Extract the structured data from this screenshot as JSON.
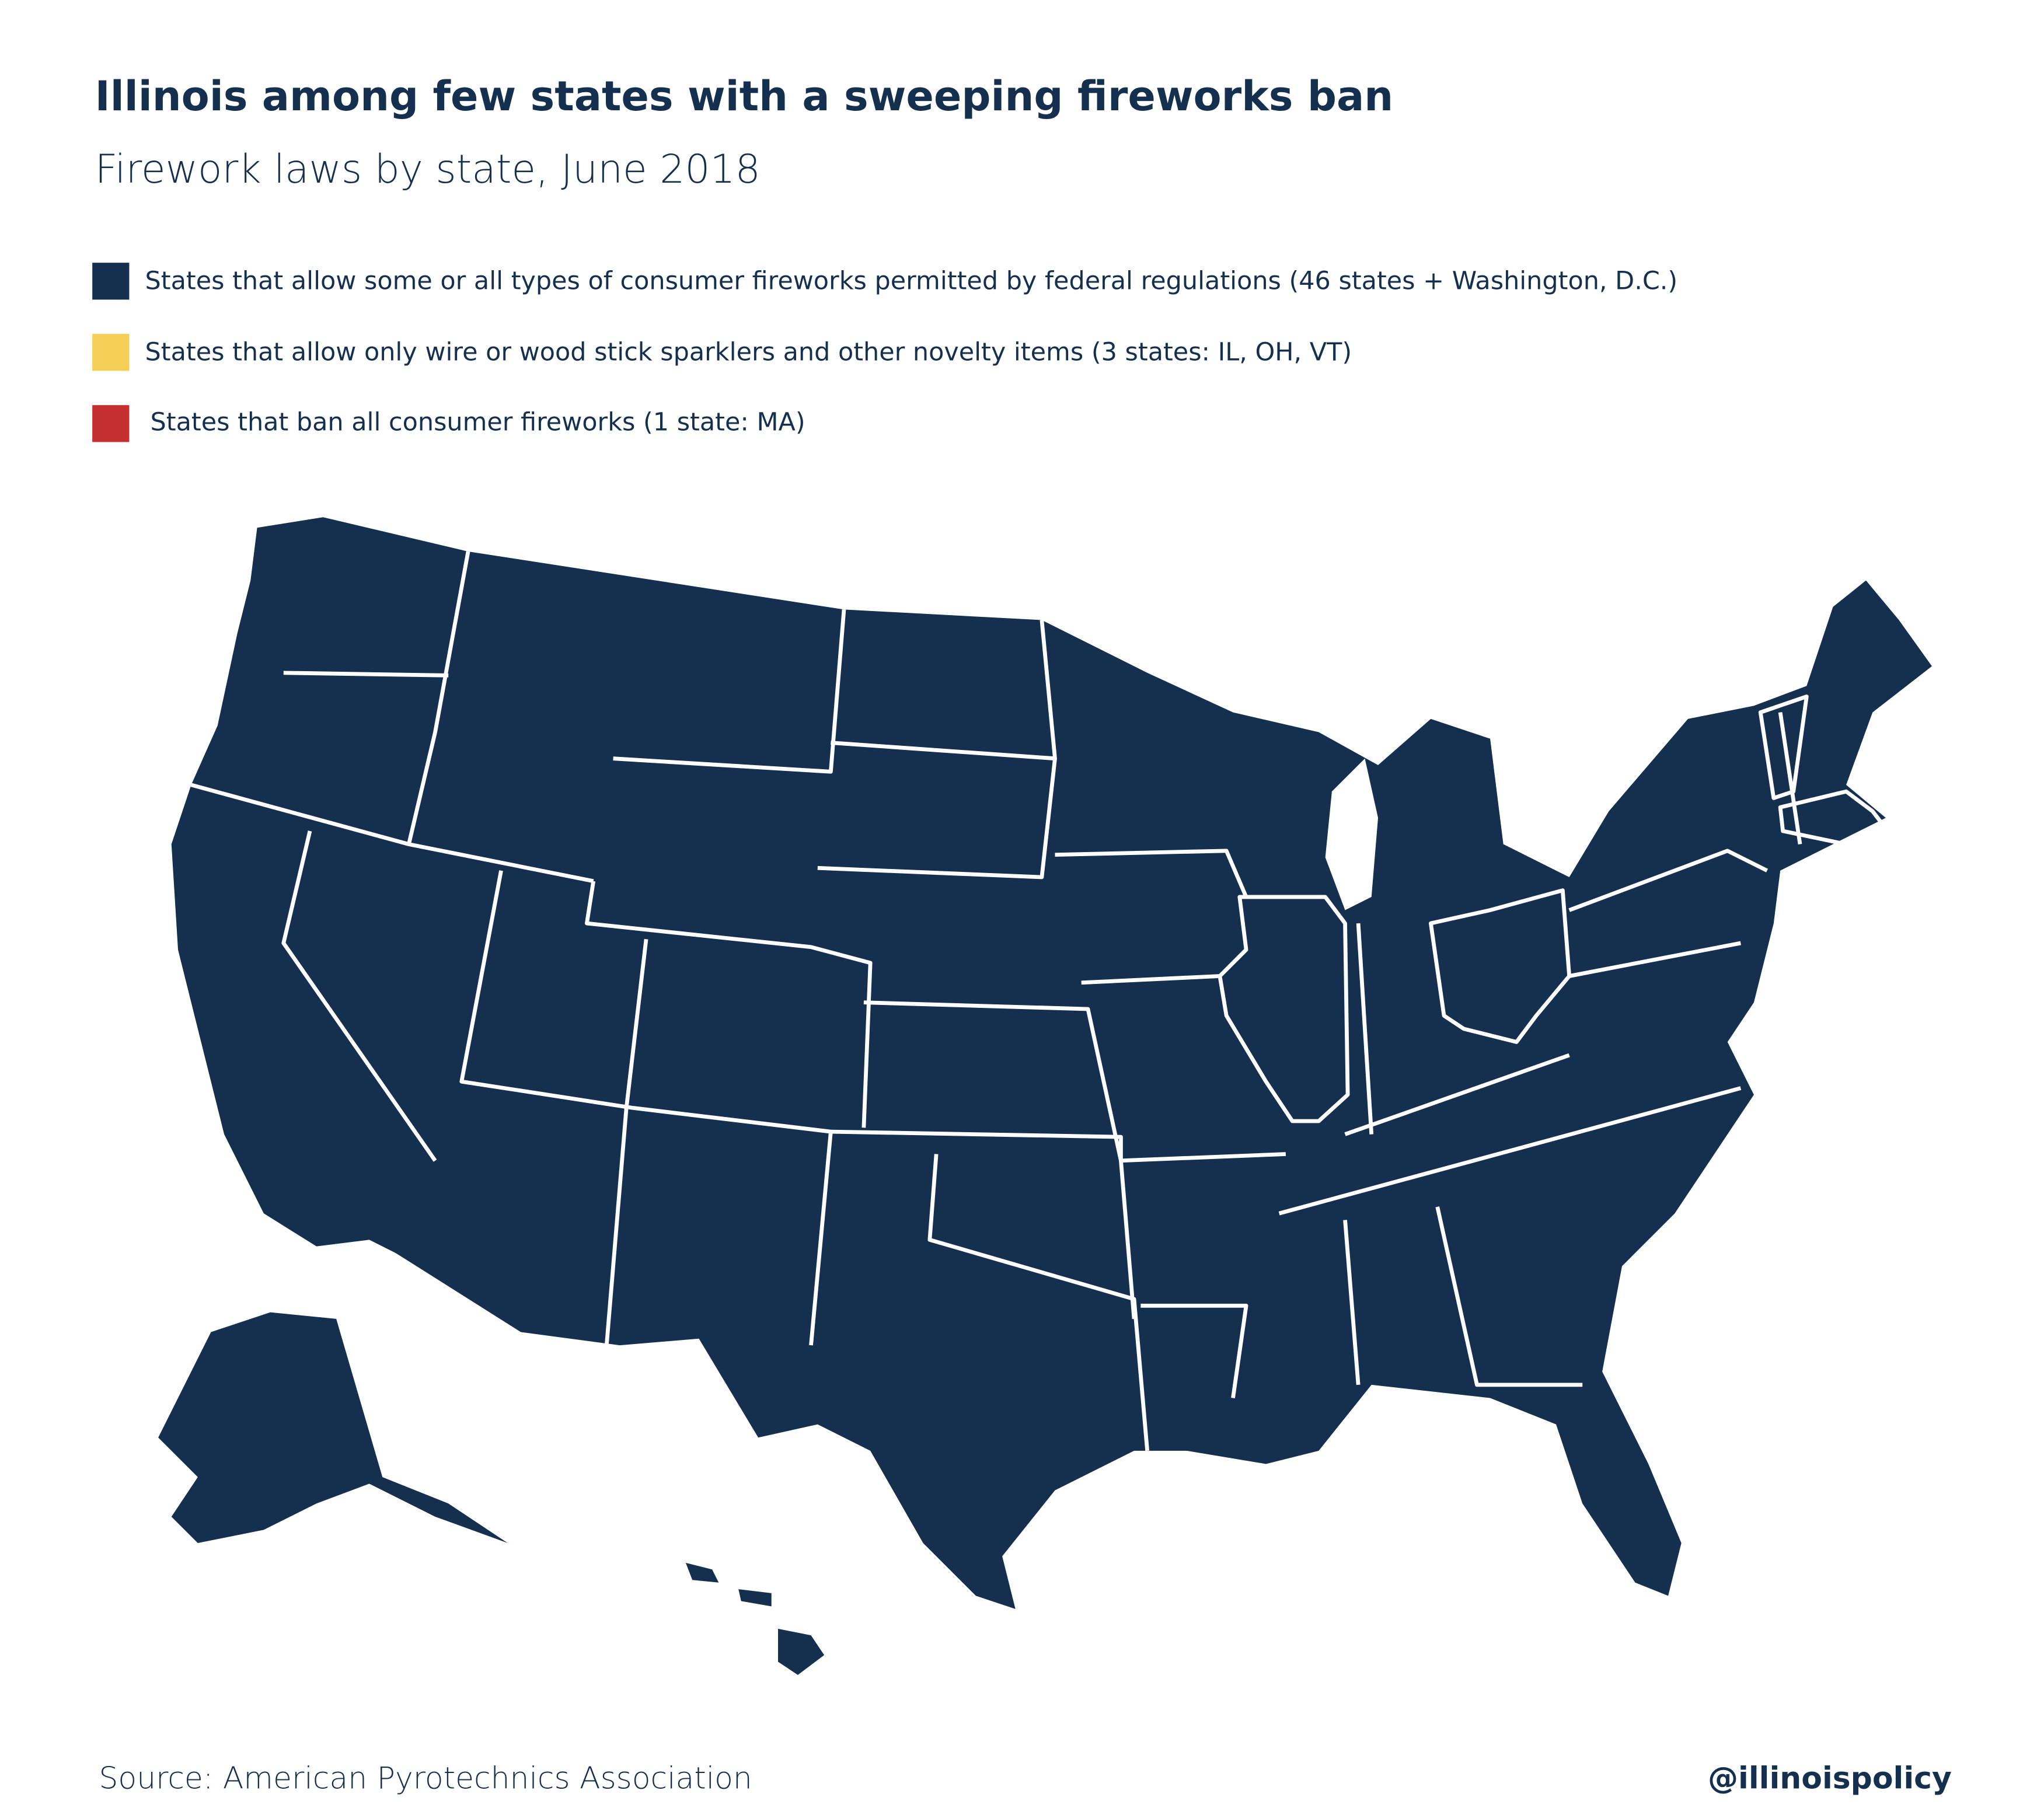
{
  "header": {
    "title": "Illinois among few states with a sweeping fireworks ban",
    "subtitle": "Firework laws by state, June 2018"
  },
  "legend": [
    {
      "label": "States that allow some or all types of consumer fireworks permitted by federal regulations (46 states + Washington, D.C.)",
      "color": "#15304f"
    },
    {
      "label": "States that allow only wire or wood stick sparklers and other novelty items (3 states: IL, OH, VT)",
      "color": "#f5ce55"
    },
    {
      "label": "States that ban all consumer fireworks (1 state: MA)",
      "color": "#c62f2f"
    }
  ],
  "footer": {
    "source": "Source: American Pyrotechnics Association",
    "handle": "@illinoispolicy"
  }
}
